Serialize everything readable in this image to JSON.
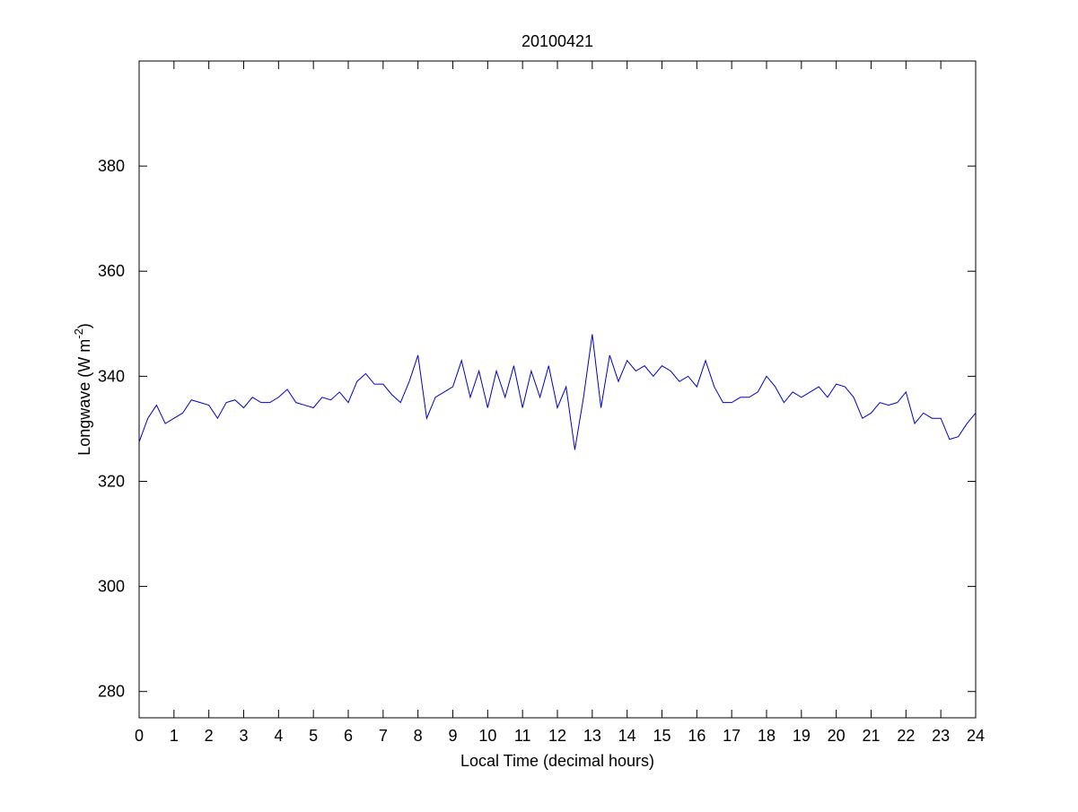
{
  "chart_data": {
    "type": "line",
    "title": "20100421",
    "xlabel": "Local Time (decimal hours)",
    "ylabel": [
      "Longwave (W m",
      "-2",
      ")"
    ],
    "x": [
      0,
      0.25,
      0.5,
      0.75,
      1,
      1.25,
      1.5,
      1.75,
      2,
      2.25,
      2.5,
      2.75,
      3,
      3.25,
      3.5,
      3.75,
      4,
      4.25,
      4.5,
      4.75,
      5,
      5.25,
      5.5,
      5.75,
      6,
      6.25,
      6.5,
      6.75,
      7,
      7.25,
      7.5,
      7.75,
      8,
      8.25,
      8.5,
      8.75,
      9,
      9.25,
      9.5,
      9.75,
      10,
      10.25,
      10.5,
      10.75,
      11,
      11.25,
      11.5,
      11.75,
      12,
      12.25,
      12.5,
      12.75,
      13,
      13.25,
      13.5,
      13.75,
      14,
      14.25,
      14.5,
      14.75,
      15,
      15.25,
      15.5,
      15.75,
      16,
      16.25,
      16.5,
      16.75,
      17,
      17.25,
      17.5,
      17.75,
      18,
      18.25,
      18.5,
      18.75,
      19,
      19.25,
      19.5,
      19.75,
      20,
      20.25,
      20.5,
      20.75,
      21,
      21.25,
      21.5,
      21.75,
      22,
      22.25,
      22.5,
      22.75,
      23,
      23.25,
      23.5,
      23.75,
      24
    ],
    "series": [
      {
        "color": "#0000c8",
        "values": [
          327.5,
          332,
          334.5,
          331,
          332,
          333,
          335.5,
          335,
          334.5,
          332,
          335,
          335.5,
          334,
          336,
          335,
          335,
          336,
          337.5,
          335,
          334.5,
          334,
          336,
          335.5,
          337,
          335,
          339,
          340.5,
          338.5,
          338.5,
          336.5,
          335,
          339,
          344,
          332,
          336,
          337,
          338,
          343,
          336,
          341,
          334,
          341,
          336,
          342,
          334,
          341,
          336,
          342,
          334,
          338,
          326,
          336,
          348,
          334,
          344,
          339,
          343,
          341,
          342,
          340,
          342,
          341,
          339,
          340,
          338,
          343,
          338,
          335,
          335,
          336,
          336,
          337,
          340,
          338,
          335,
          337,
          336,
          337,
          338,
          336,
          338.5,
          338,
          336,
          332,
          333,
          335,
          334.5,
          335,
          337,
          331,
          333,
          332,
          332,
          328,
          328.5,
          331,
          333
        ]
      }
    ],
    "xlim": [
      0,
      24
    ],
    "ylim": [
      275,
      400
    ],
    "xticks": [
      0,
      1,
      2,
      3,
      4,
      5,
      6,
      7,
      8,
      9,
      10,
      11,
      12,
      13,
      14,
      15,
      16,
      17,
      18,
      19,
      20,
      21,
      22,
      23,
      24
    ],
    "yticks": [
      280,
      300,
      320,
      340,
      360,
      380
    ]
  }
}
